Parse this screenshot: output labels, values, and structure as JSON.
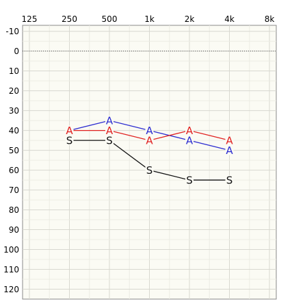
{
  "chart_data": {
    "type": "line",
    "x_ticks": [
      "125",
      "250",
      "500",
      "1k",
      "2k",
      "4k",
      "8k"
    ],
    "y_ticks": [
      -10,
      0,
      10,
      20,
      30,
      40,
      50,
      60,
      70,
      80,
      90,
      100,
      110,
      120
    ],
    "ylim": [
      -13,
      125
    ],
    "y_inverted": true,
    "grid": true,
    "reference_line_y": 0,
    "series": [
      {
        "symbol": "A",
        "color": "#2b2bd0",
        "x": [
          "250",
          "500",
          "1k",
          "2k",
          "4k"
        ],
        "values": [
          40,
          35,
          40,
          45,
          50
        ]
      },
      {
        "symbol": "A",
        "color": "#e02020",
        "x": [
          "250",
          "500",
          "1k",
          "2k",
          "4k"
        ],
        "values": [
          40,
          40,
          45,
          40,
          45
        ]
      },
      {
        "symbol": "S",
        "color": "#111111",
        "x": [
          "250",
          "500",
          "1k",
          "2k",
          "4k"
        ],
        "values": [
          45,
          45,
          60,
          65,
          65
        ]
      }
    ]
  }
}
